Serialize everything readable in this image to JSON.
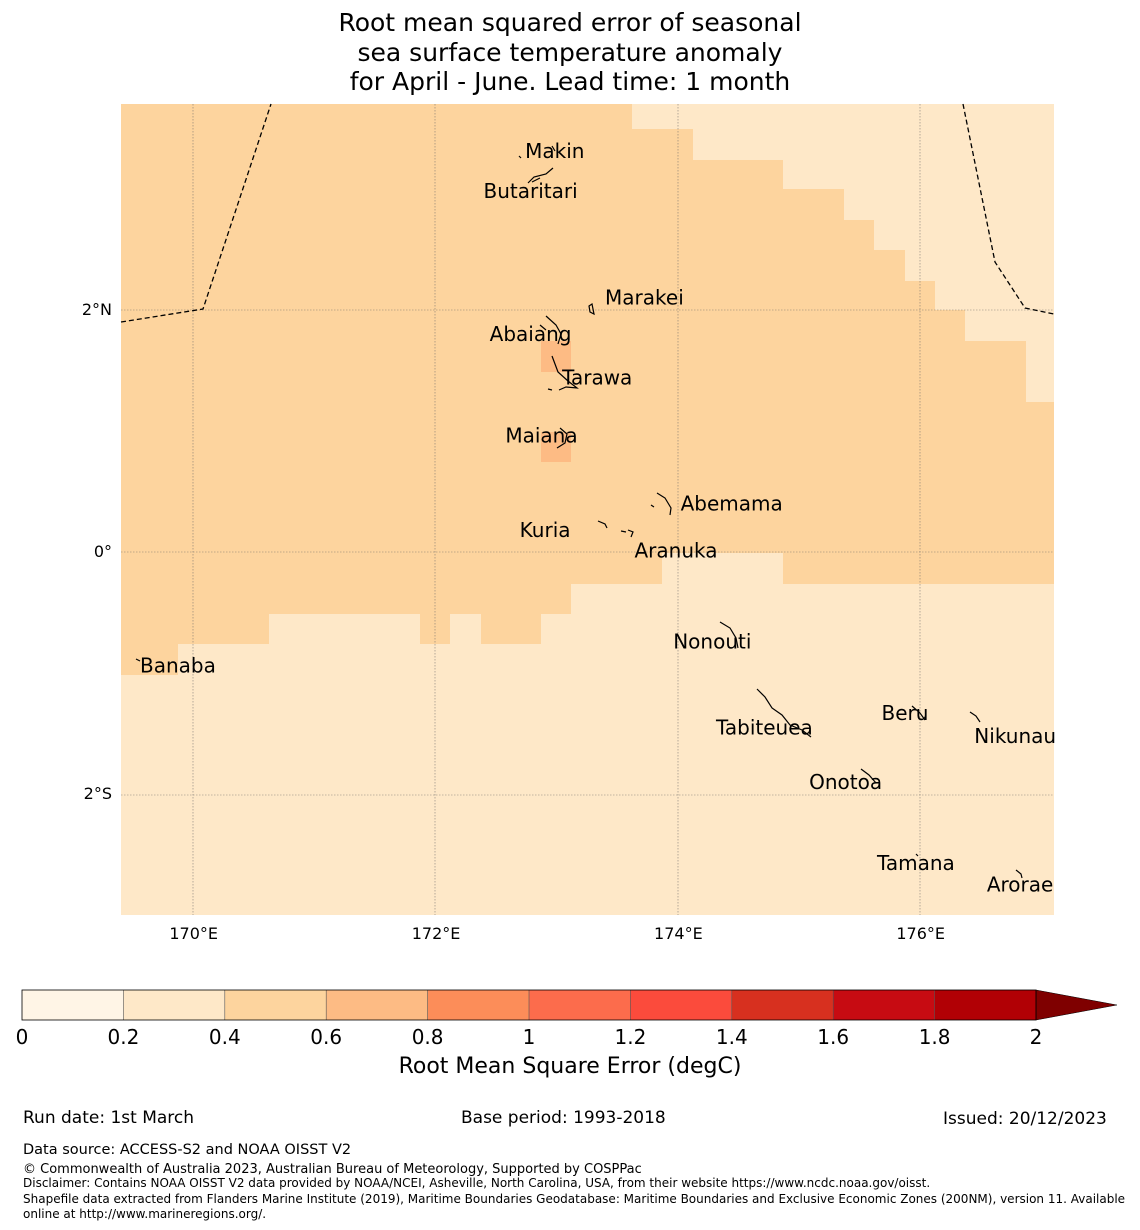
{
  "title": {
    "line1": "Root mean squared error of seasonal",
    "line2": "sea surface temperature anomaly",
    "line3": "for April - June. Lead time: 1 month"
  },
  "map": {
    "lon_range": [
      169.4,
      177.1
    ],
    "lat_range": [
      -3.0,
      3.7
    ],
    "x_ticks": [
      {
        "lon": 170,
        "label": "170°E"
      },
      {
        "lon": 172,
        "label": "172°E"
      },
      {
        "lon": 174,
        "label": "174°E"
      },
      {
        "lon": 176,
        "label": "176°E"
      }
    ],
    "y_ticks": [
      {
        "lat": 2,
        "label": "2°N"
      },
      {
        "lat": 0,
        "label": "0°"
      },
      {
        "lat": -2,
        "label": "2°S"
      }
    ],
    "colors": {
      "bin_0_2_to_0_4": "#fee8c8",
      "bin_0_4_to_0_6": "#fdd49e",
      "bin_0_6_to_0_8": "#fdbb84"
    },
    "places": [
      {
        "name": "Makin",
        "lon": 172.98,
        "lat": 3.31
      },
      {
        "name": "Butaritari",
        "lon": 172.78,
        "lat": 2.98
      },
      {
        "name": "Marakei",
        "lon": 173.72,
        "lat": 2.1
      },
      {
        "name": "Abaiang",
        "lon": 172.78,
        "lat": 1.8
      },
      {
        "name": "Tarawa",
        "lon": 173.33,
        "lat": 1.44
      },
      {
        "name": "Maiana",
        "lon": 172.87,
        "lat": 0.96
      },
      {
        "name": "Abemama",
        "lon": 174.44,
        "lat": 0.4
      },
      {
        "name": "Kuria",
        "lon": 172.9,
        "lat": 0.18
      },
      {
        "name": "Aranuka",
        "lon": 173.98,
        "lat": 0.01
      },
      {
        "name": "Nonouti",
        "lon": 174.28,
        "lat": -0.74
      },
      {
        "name": "Banaba",
        "lon": 169.87,
        "lat": -0.94
      },
      {
        "name": "Tabiteuea",
        "lon": 174.71,
        "lat": -1.45
      },
      {
        "name": "Beru",
        "lon": 175.87,
        "lat": -1.33
      },
      {
        "name": "Nikunau",
        "lon": 176.78,
        "lat": -1.52
      },
      {
        "name": "Onotoa",
        "lon": 175.38,
        "lat": -1.9
      },
      {
        "name": "Tamana",
        "lon": 175.96,
        "lat": -2.57
      },
      {
        "name": "Arorae",
        "lon": 176.82,
        "lat": -2.75
      }
    ]
  },
  "colorbar": {
    "label": "Root Mean Square Error (degC)",
    "ticks": [
      "0",
      "0.2",
      "0.4",
      "0.6",
      "0.8",
      "1",
      "1.2",
      "1.4",
      "1.6",
      "1.8",
      "2"
    ],
    "colors": [
      "#fff5e6",
      "#fee8c8",
      "#fdd49e",
      "#fdbb84",
      "#fc8d59",
      "#fc6c4c",
      "#fb4b3c",
      "#d7301f",
      "#c70b12",
      "#b10005"
    ],
    "extend_color": "#7f0000"
  },
  "footer": {
    "run_date": "Run date: 1st March",
    "base_period": "Base period: 1993-2018",
    "issued": "Issued: 20/12/2023",
    "data_source": "Data source: ACCESS-S2 and NOAA OISST V2",
    "copyright": "© Commonwealth of Australia 2023, Australian Bureau of Meteorology, Supported by COSPPac",
    "disclaimer": "Disclaimer: Contains NOAA OISST V2 data provided by NOAA/NCEI, Asheville, North Carolina, USA, from their website https://www.ncdc.noaa.gov/oisst.",
    "shapefile_1": "Shapefile data extracted from Flanders Marine Institute (2019), Maritime Boundaries Geodatabase: Maritime Boundaries and Exclusive Economic Zones (200NM), version 11. Available",
    "shapefile_2": "online at http://www.marineregions.org/."
  }
}
